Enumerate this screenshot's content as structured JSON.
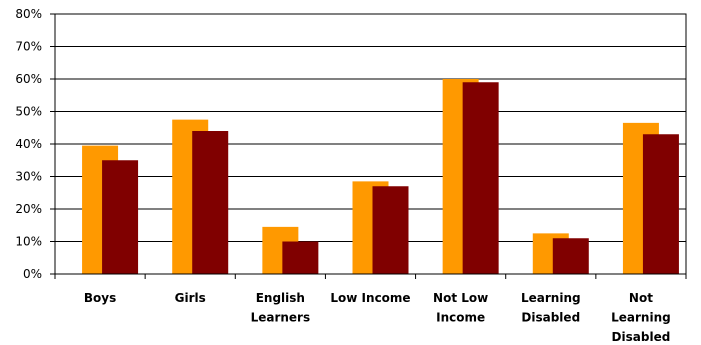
{
  "chart_data": {
    "type": "bar",
    "categories": [
      [
        "Boys"
      ],
      [
        "Girls"
      ],
      [
        "English",
        "Learners"
      ],
      [
        "Low Income"
      ],
      [
        "Not Low",
        "Income"
      ],
      [
        "Learning",
        "Disabled"
      ],
      [
        "Not",
        "Learning",
        "Disabled"
      ]
    ],
    "series": [
      {
        "values": [
          39.5,
          47.5,
          14.5,
          28.5,
          60.0,
          12.5,
          46.5
        ],
        "color": "#FF9900"
      },
      {
        "values": [
          35.0,
          44.0,
          10.0,
          27.0,
          59.0,
          11.0,
          43.0
        ],
        "color": "#800000"
      }
    ],
    "yticks": [
      "0%",
      "10%",
      "20%",
      "30%",
      "40%",
      "50%",
      "60%",
      "70%",
      "80%"
    ],
    "ylim": [
      0,
      80
    ],
    "grid": true,
    "title": "",
    "xlabel": "",
    "ylabel": ""
  }
}
